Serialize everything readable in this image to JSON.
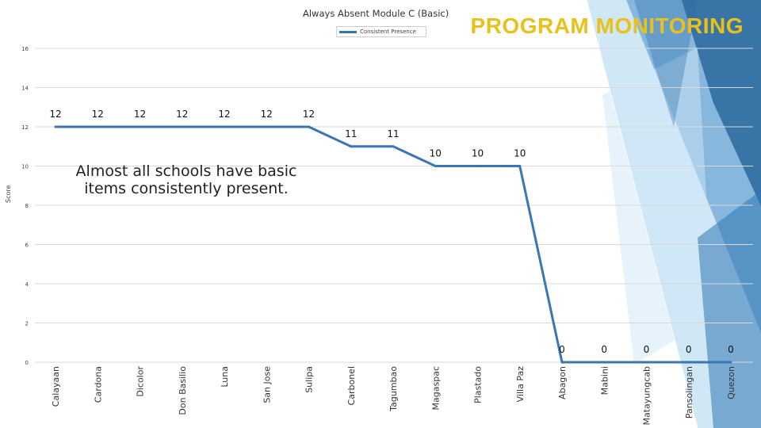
{
  "heading": "PROGRAM MONITORING",
  "callout": "Almost all schools have basic items consistently present.",
  "colors": {
    "line": "#3a75b4",
    "heading": "#e8c21a",
    "grid": "#d9d9d9"
  },
  "chart_data": {
    "type": "line",
    "title": "Always Absent Module C (Basic)",
    "ylabel": "Score",
    "xlabel": "",
    "legend_position": "top-center",
    "ylim": [
      0,
      16
    ],
    "yticks": [
      0,
      2,
      4,
      6,
      8,
      10,
      12,
      14,
      16
    ],
    "grid": true,
    "categories": [
      "Calayaan",
      "Cardona",
      "Dicolor",
      "Don Basilio",
      "Luna",
      "San Jose",
      "Sulipa",
      "Carbonel",
      "Tagumbao",
      "Magaspac",
      "Plastado",
      "Villa Paz",
      "Abagon",
      "Mabini",
      "Matayungcab",
      "Pansolingan",
      "Quezon"
    ],
    "series": [
      {
        "name": "Consistent Presence",
        "values": [
          12,
          12,
          12,
          12,
          12,
          12,
          12,
          11,
          11,
          10,
          10,
          10,
          0,
          0,
          0,
          0,
          0
        ]
      }
    ]
  }
}
